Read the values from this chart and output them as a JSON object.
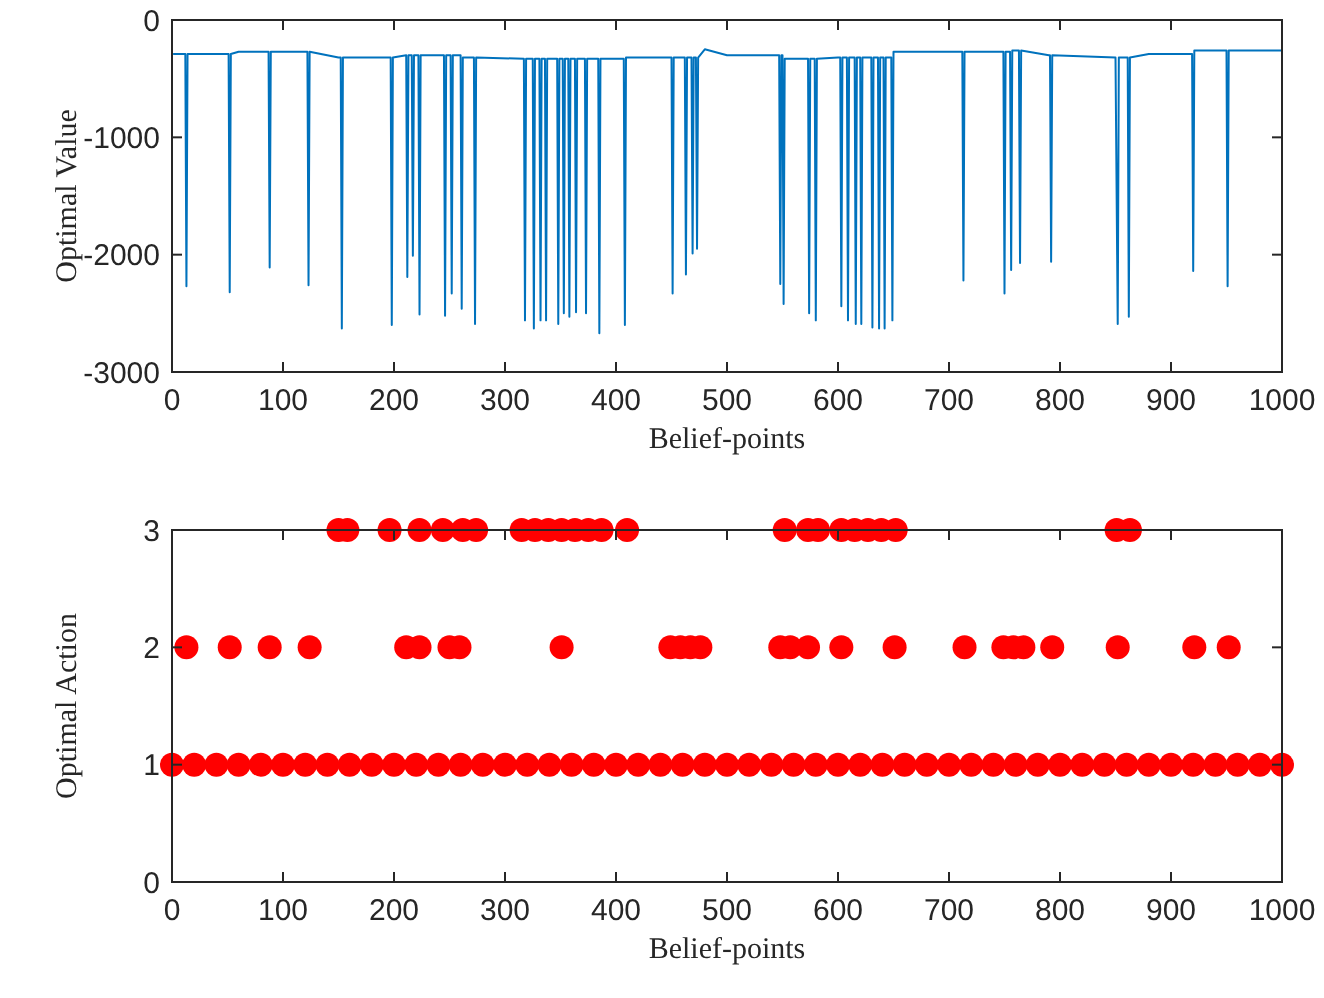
{
  "chart_data": [
    {
      "type": "line",
      "xlabel": "Belief-points",
      "ylabel": "Optimal Value",
      "xlim": [
        0,
        1000
      ],
      "ylim": [
        -3000,
        0
      ],
      "xticks": [
        0,
        100,
        200,
        300,
        400,
        500,
        600,
        700,
        800,
        900,
        1000
      ],
      "yticks": [
        -3000,
        -2000,
        -1000,
        0
      ],
      "grid": false,
      "line_style": "solid",
      "series": [
        {
          "color": "#0072bd",
          "x": [
            1,
            12,
            13,
            14,
            51,
            52,
            53,
            60,
            87,
            88,
            89,
            122,
            123,
            124,
            150,
            152,
            153,
            154,
            197,
            198,
            199,
            211,
            212,
            213,
            216,
            217,
            218,
            222,
            223,
            224,
            245,
            246,
            247,
            251,
            252,
            253,
            260,
            261,
            262,
            272,
            273,
            274,
            317,
            318,
            319,
            325,
            326,
            327,
            331,
            332,
            333,
            336,
            337,
            338,
            347,
            348,
            349,
            352,
            353,
            354,
            357,
            358,
            359,
            363,
            364,
            365,
            372,
            373,
            374,
            384,
            385,
            386,
            407,
            408,
            409,
            450,
            451,
            452,
            462,
            463,
            464,
            468,
            469,
            470,
            472,
            473,
            474,
            480,
            500,
            547,
            548,
            549,
            550,
            551,
            552,
            573,
            574,
            575,
            579,
            580,
            581,
            600,
            602,
            603,
            604,
            608,
            609,
            610,
            615,
            616,
            617,
            620,
            621,
            622,
            630,
            631,
            632,
            636,
            637,
            638,
            641,
            642,
            643,
            648,
            649,
            650,
            712,
            713,
            714,
            749,
            750,
            751,
            755,
            756,
            757,
            763,
            764,
            765,
            790,
            791,
            792,
            793,
            850,
            852,
            853,
            861,
            862,
            863,
            880,
            919,
            920,
            921,
            950,
            951,
            952,
            1000
          ],
          "values": [
            -290,
            -290,
            -2270,
            -290,
            -290,
            -2320,
            -290,
            -270,
            -270,
            -2110,
            -270,
            -270,
            -2260,
            -270,
            -320,
            -320,
            -2630,
            -320,
            -320,
            -2600,
            -320,
            -300,
            -2190,
            -300,
            -300,
            -2010,
            -300,
            -300,
            -2510,
            -300,
            -300,
            -2520,
            -300,
            -300,
            -2330,
            -300,
            -300,
            -2460,
            -320,
            -320,
            -2590,
            -320,
            -330,
            -2560,
            -330,
            -330,
            -2630,
            -330,
            -330,
            -2560,
            -330,
            -330,
            -2560,
            -330,
            -330,
            -2590,
            -330,
            -330,
            -2500,
            -330,
            -330,
            -2530,
            -330,
            -330,
            -2490,
            -330,
            -330,
            -2500,
            -330,
            -330,
            -2670,
            -330,
            -330,
            -2600,
            -320,
            -320,
            -2330,
            -320,
            -320,
            -2170,
            -320,
            -320,
            -1990,
            -320,
            -320,
            -1950,
            -320,
            -250,
            -300,
            -300,
            -2250,
            -300,
            -300,
            -2420,
            -330,
            -330,
            -2500,
            -330,
            -330,
            -2560,
            -330,
            -320,
            -320,
            -2440,
            -320,
            -320,
            -2560,
            -320,
            -320,
            -2590,
            -320,
            -320,
            -2590,
            -320,
            -320,
            -2620,
            -320,
            -320,
            -2630,
            -320,
            -320,
            -2630,
            -320,
            -320,
            -2560,
            -270,
            -270,
            -2220,
            -270,
            -270,
            -2330,
            -270,
            -270,
            -2130,
            -260,
            -260,
            -2070,
            -260,
            -300,
            -300,
            -2060,
            -300,
            -320,
            -2590,
            -320,
            -320,
            -2530,
            -320,
            -290,
            -290,
            -2140,
            -260,
            -260,
            -2270,
            -260,
            -260
          ]
        }
      ]
    },
    {
      "type": "scatter",
      "xlabel": "Belief-points",
      "ylabel": "Optimal Action",
      "xlim": [
        0,
        1000
      ],
      "ylim": [
        0,
        3
      ],
      "xticks": [
        0,
        100,
        200,
        300,
        400,
        500,
        600,
        700,
        800,
        900,
        1000
      ],
      "yticks": [
        0,
        1,
        2,
        3
      ],
      "grid": false,
      "marker": "circle",
      "series": [
        {
          "color": "#ff0000",
          "x": [
            0,
            20,
            40,
            60,
            80,
            100,
            120,
            140,
            160,
            180,
            200,
            220,
            240,
            260,
            280,
            300,
            320,
            340,
            360,
            380,
            400,
            420,
            440,
            460,
            480,
            500,
            520,
            540,
            560,
            580,
            600,
            620,
            640,
            660,
            680,
            700,
            720,
            740,
            760,
            780,
            800,
            820,
            840,
            860,
            880,
            900,
            920,
            940,
            960,
            980,
            1000
          ],
          "values": [
            1,
            1,
            1,
            1,
            1,
            1,
            1,
            1,
            1,
            1,
            1,
            1,
            1,
            1,
            1,
            1,
            1,
            1,
            1,
            1,
            1,
            1,
            1,
            1,
            1,
            1,
            1,
            1,
            1,
            1,
            1,
            1,
            1,
            1,
            1,
            1,
            1,
            1,
            1,
            1,
            1,
            1,
            1,
            1,
            1,
            1,
            1,
            1,
            1,
            1,
            1
          ]
        },
        {
          "color": "#ff0000",
          "x": [
            13,
            52,
            88,
            124,
            211,
            223,
            250,
            259,
            351,
            449,
            458,
            467,
            476,
            548,
            557,
            573,
            603,
            651,
            714,
            749,
            758,
            767,
            793,
            852,
            921,
            952
          ],
          "values": [
            2,
            2,
            2,
            2,
            2,
            2,
            2,
            2,
            2,
            2,
            2,
            2,
            2,
            2,
            2,
            2,
            2,
            2,
            2,
            2,
            2,
            2,
            2,
            2,
            2,
            2
          ]
        },
        {
          "color": "#ff0000",
          "x": [
            150,
            158,
            196,
            223,
            244,
            262,
            274,
            315,
            327,
            339,
            351,
            363,
            375,
            387,
            410,
            552,
            573,
            582,
            603,
            615,
            627,
            639,
            652,
            851,
            863
          ],
          "values": [
            3,
            3,
            3,
            3,
            3,
            3,
            3,
            3,
            3,
            3,
            3,
            3,
            3,
            3,
            3,
            3,
            3,
            3,
            3,
            3,
            3,
            3,
            3,
            3,
            3
          ]
        }
      ]
    }
  ]
}
